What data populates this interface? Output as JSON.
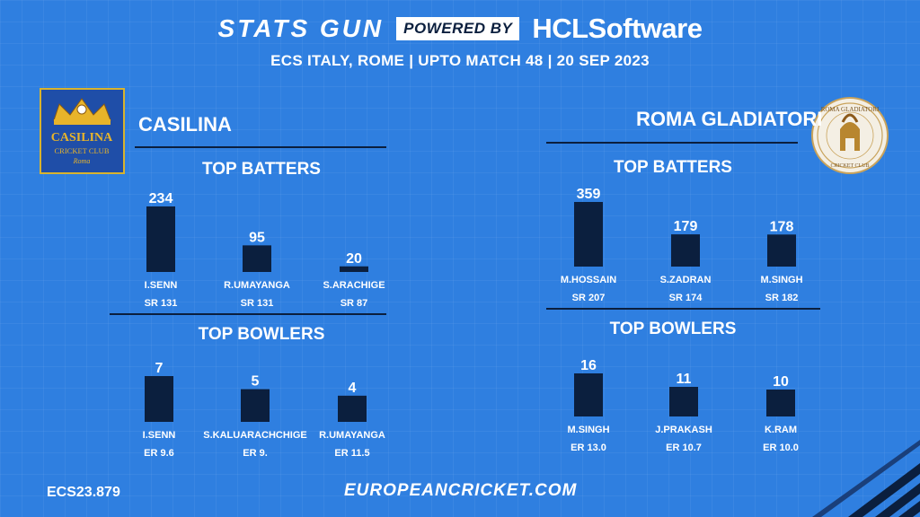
{
  "header": {
    "brand_stats": "STATS GUN",
    "brand_powered": "POWERED BY",
    "brand_hcl": "HCLSoftware",
    "subtitle": "ECS ITALY,  ROME   | UPTO MATCH 48 | 20 SEP 2023"
  },
  "teams": [
    {
      "name": "CASILINA",
      "logo": "casilina-cricket-club-crest"
    },
    {
      "name": "ROMA GLADIATORI",
      "logo": "roma-gladiatori-helmet-crest"
    }
  ],
  "sections": {
    "batters": "TOP BATTERS",
    "bowlers": "TOP BOWLERS"
  },
  "footer": {
    "code": "ECS23.879",
    "site": "EUROPEANCRICKET.COM"
  },
  "colors": {
    "background": "#2f7fe0",
    "bar": "#0b1f3e",
    "text": "#ffffff"
  },
  "chart_data": [
    {
      "type": "bar",
      "title": "TOP BATTERS",
      "team": "CASILINA",
      "categories": [
        "I.SENN",
        "R.UMAYANGA",
        "S.ARACHIGE"
      ],
      "values": [
        234,
        95,
        20
      ],
      "sublabels": [
        "SR 131",
        "SR 131",
        "SR 87"
      ]
    },
    {
      "type": "bar",
      "title": "TOP BOWLERS",
      "team": "CASILINA",
      "categories": [
        "I.SENN",
        "S.KALUARACHCHIGE",
        "R.UMAYANGA"
      ],
      "values": [
        7,
        5,
        4
      ],
      "sublabels": [
        "ER 9.6",
        "ER 9.",
        "ER 11.5"
      ]
    },
    {
      "type": "bar",
      "title": "TOP BATTERS",
      "team": "ROMA GLADIATORI",
      "categories": [
        "M.HOSSAIN",
        "S.ZADRAN",
        "M.SINGH"
      ],
      "values": [
        359,
        179,
        178
      ],
      "sublabels": [
        "SR 207",
        "SR 174",
        "SR 182"
      ]
    },
    {
      "type": "bar",
      "title": "TOP BOWLERS",
      "team": "ROMA GLADIATORI",
      "categories": [
        "M.SINGH",
        "J.PRAKASH",
        "K.RAM"
      ],
      "values": [
        16,
        11,
        10
      ],
      "sublabels": [
        "ER 13.0",
        "ER 10.7",
        "ER 10.0"
      ]
    }
  ]
}
